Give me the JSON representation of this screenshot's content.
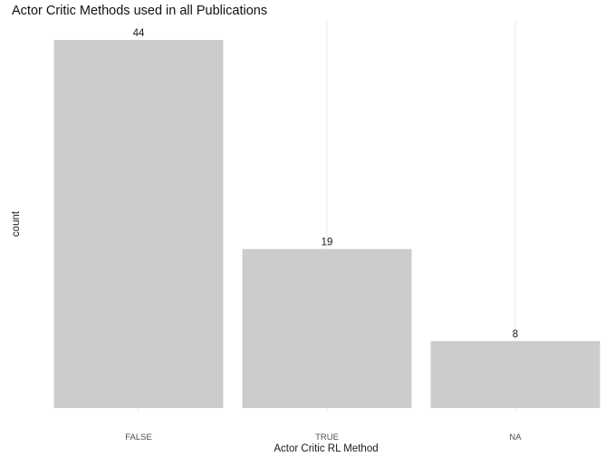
{
  "chart_data": {
    "type": "bar",
    "title": "Actor Critic Methods used in all Publications",
    "xlabel": "Actor Critic RL Method",
    "ylabel": "count",
    "categories": [
      "FALSE",
      "TRUE",
      "NA"
    ],
    "values": [
      44,
      19,
      8
    ],
    "ylim": [
      0,
      44
    ],
    "grid": true,
    "show_y_ticks": false,
    "colors": {
      "bar": "#cccccc",
      "grid": "#ebebeb",
      "text": "#1a1a1a",
      "tick": "#4d4d4d"
    }
  }
}
